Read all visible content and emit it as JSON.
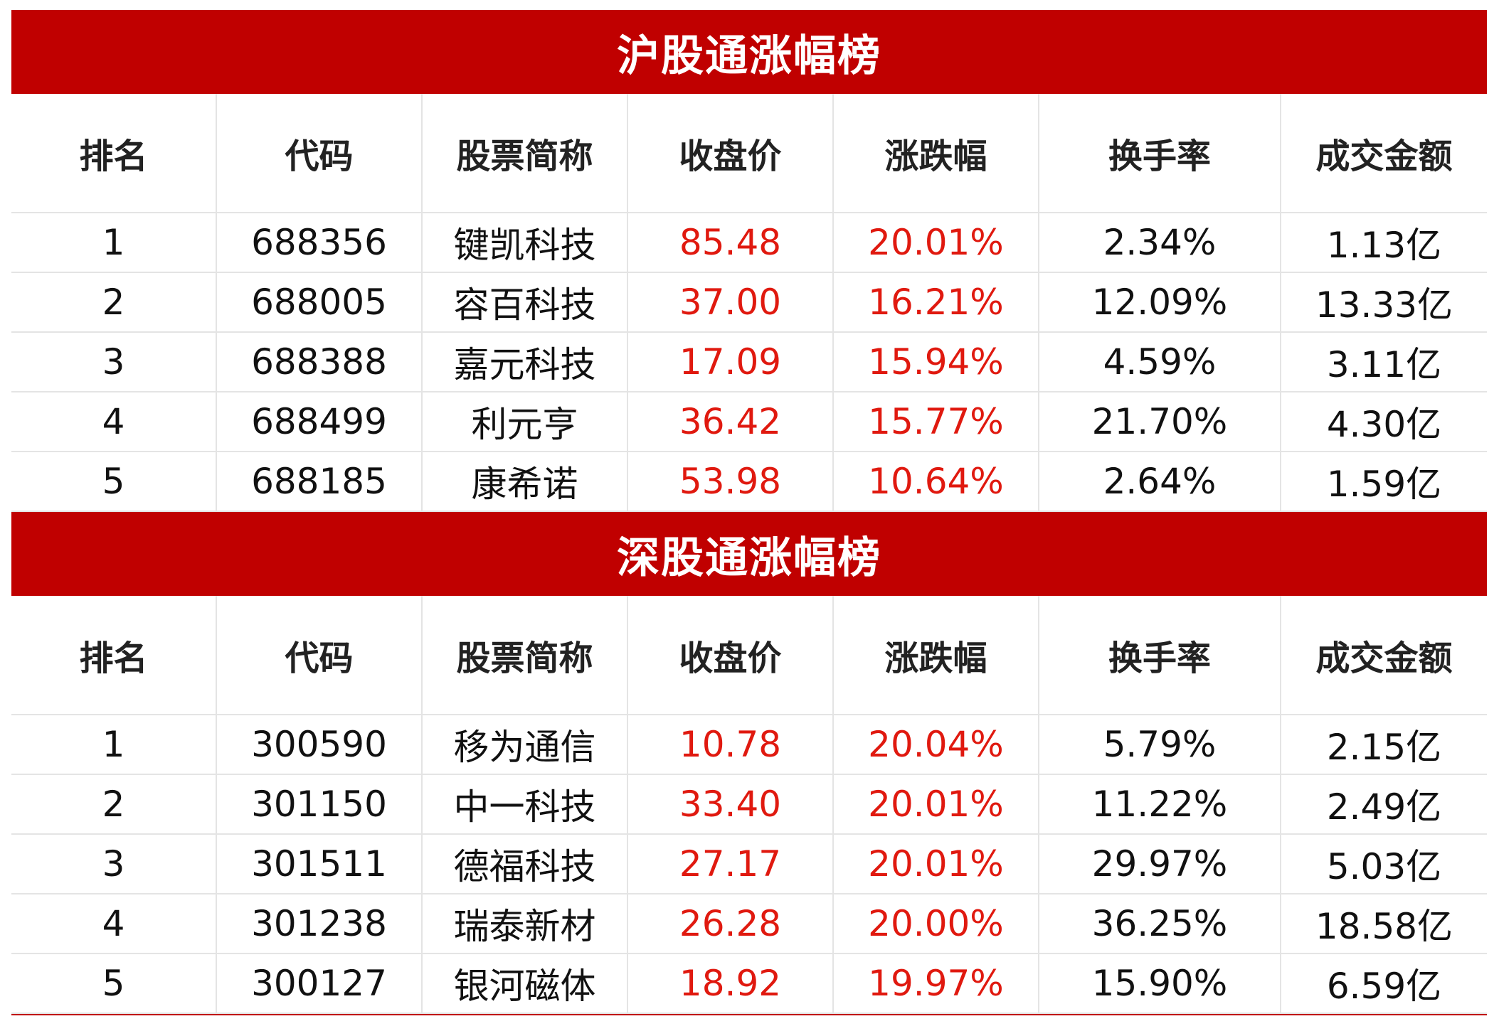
{
  "headers": [
    "排名",
    "代码",
    "股票简称",
    "收盘价",
    "涨跌幅",
    "换手率",
    "成交金额"
  ],
  "colors": {
    "banner": "#c00000",
    "price_change": "#e0190f",
    "text": "#111111"
  },
  "sections": [
    {
      "title": "沪股通涨幅榜",
      "rows": [
        {
          "rank": "1",
          "code": "688356",
          "name": "键凯科技",
          "close": "85.48",
          "change": "20.01%",
          "turnover": "2.34%",
          "amount": "1.13亿"
        },
        {
          "rank": "2",
          "code": "688005",
          "name": "容百科技",
          "close": "37.00",
          "change": "16.21%",
          "turnover": "12.09%",
          "amount": "13.33亿"
        },
        {
          "rank": "3",
          "code": "688388",
          "name": "嘉元科技",
          "close": "17.09",
          "change": "15.94%",
          "turnover": "4.59%",
          "amount": "3.11亿"
        },
        {
          "rank": "4",
          "code": "688499",
          "name": "利元亨",
          "close": "36.42",
          "change": "15.77%",
          "turnover": "21.70%",
          "amount": "4.30亿"
        },
        {
          "rank": "5",
          "code": "688185",
          "name": "康希诺",
          "close": "53.98",
          "change": "10.64%",
          "turnover": "2.64%",
          "amount": "1.59亿"
        }
      ]
    },
    {
      "title": "深股通涨幅榜",
      "rows": [
        {
          "rank": "1",
          "code": "300590",
          "name": "移为通信",
          "close": "10.78",
          "change": "20.04%",
          "turnover": "5.79%",
          "amount": "2.15亿"
        },
        {
          "rank": "2",
          "code": "301150",
          "name": "中一科技",
          "close": "33.40",
          "change": "20.01%",
          "turnover": "11.22%",
          "amount": "2.49亿"
        },
        {
          "rank": "3",
          "code": "301511",
          "name": "德福科技",
          "close": "27.17",
          "change": "20.01%",
          "turnover": "29.97%",
          "amount": "5.03亿"
        },
        {
          "rank": "4",
          "code": "301238",
          "name": "瑞泰新材",
          "close": "26.28",
          "change": "20.00%",
          "turnover": "36.25%",
          "amount": "18.58亿"
        },
        {
          "rank": "5",
          "code": "300127",
          "name": "银河磁体",
          "close": "18.92",
          "change": "19.97%",
          "turnover": "15.90%",
          "amount": "6.59亿"
        }
      ]
    }
  ]
}
